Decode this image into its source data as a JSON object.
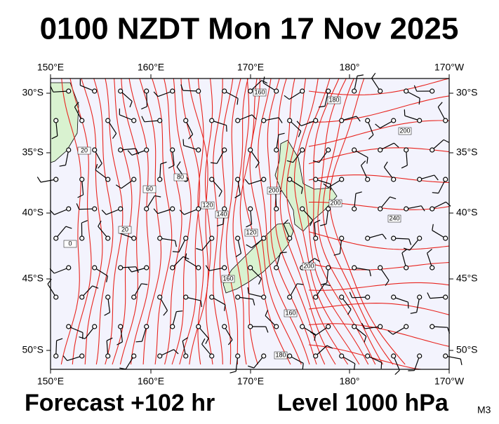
{
  "header": {
    "title": "0100 NZDT Mon 17 Nov 2025"
  },
  "map": {
    "lon_ticks": [
      "150°E",
      "160°E",
      "170°E",
      "180°",
      "170°W"
    ],
    "lat_ticks": [
      "30°S",
      "35°S",
      "40°S",
      "45°S",
      "50°S"
    ],
    "contour_labels": [
      "160",
      "180",
      "200",
      "20",
      "80",
      "60",
      "120",
      "140",
      "200",
      "20",
      "120",
      "200",
      "240",
      "160",
      "200",
      "160",
      "180",
      "0"
    ]
  },
  "footer": {
    "forecast": "Forecast +102 hr",
    "level": "Level 1000 hPa",
    "model": "M3"
  }
}
